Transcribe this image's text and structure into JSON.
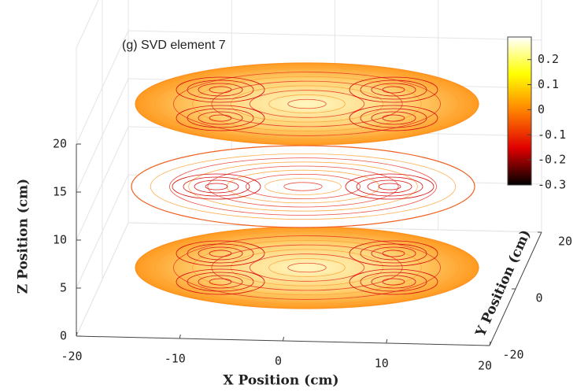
{
  "chart_data": {
    "type": "contour3d",
    "title": "(g) SVD element 7",
    "xlabel": "X Position (cm)",
    "ylabel": "Y Position (cm)",
    "zlabel": "Z Position (cm)",
    "xlim": [
      -20,
      20
    ],
    "xticks": [
      -20,
      -10,
      0,
      10,
      20
    ],
    "ylim": [
      -20,
      20
    ],
    "yticks": [
      -20,
      0,
      20
    ],
    "zlim": [
      0,
      30
    ],
    "zticks": [
      0,
      5,
      10,
      15,
      20
    ],
    "clim": [
      -0.3,
      0.29
    ],
    "cticks": [
      -0.3,
      -0.2,
      -0.1,
      0,
      0.1,
      0.2
    ],
    "colormap": [
      "#000000",
      "#e00000",
      "#ff8000",
      "#ffff00",
      "#ffffff"
    ],
    "grid": true
  }
}
